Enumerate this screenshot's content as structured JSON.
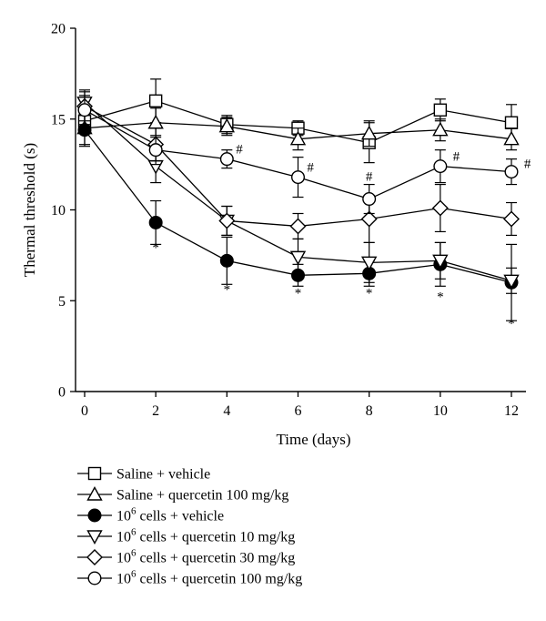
{
  "chart_data": {
    "type": "line",
    "xlabel": "Time (days)",
    "ylabel": "Thermal threshold (s)",
    "xlim": [
      0,
      12
    ],
    "ylim": [
      0,
      20
    ],
    "x_ticks": [
      "0",
      "2",
      "4",
      "6",
      "8",
      "10",
      "12"
    ],
    "y_ticks": [
      "0",
      "5",
      "10",
      "15",
      "20"
    ],
    "grid": false,
    "legend_position": "bottom",
    "series": [
      {
        "name": "Saline + vehicle",
        "marker": "square-open",
        "x": [
          0,
          2,
          4,
          6,
          8,
          10,
          12
        ],
        "y": [
          14.9,
          16.0,
          14.7,
          14.5,
          13.7,
          15.5,
          14.8
        ],
        "err": [
          0.6,
          1.2,
          0.5,
          0.4,
          1.1,
          0.6,
          1.0
        ]
      },
      {
        "name": "Saline + quercetin 100 mg/kg",
        "marker": "triangle-up-open",
        "x": [
          0,
          2,
          4,
          6,
          8,
          10,
          12
        ],
        "y": [
          14.5,
          14.8,
          14.6,
          13.9,
          14.2,
          14.4,
          13.9
        ],
        "err": [
          1.0,
          0.8,
          0.5,
          0.6,
          0.7,
          0.6,
          0.6
        ]
      },
      {
        "name": "cells + vehicle",
        "name_prefix": "10",
        "name_sup": "6",
        "marker": "circle-filled",
        "x": [
          0,
          2,
          4,
          6,
          8,
          10,
          12
        ],
        "y": [
          14.4,
          9.3,
          7.2,
          6.4,
          6.5,
          7.0,
          6.0
        ],
        "err": [
          0.8,
          1.2,
          1.3,
          0.6,
          0.7,
          1.2,
          2.1
        ]
      },
      {
        "name": "cells + quercetin 10 mg/kg",
        "name_prefix": "10",
        "name_sup": "6",
        "marker": "triangle-down-open",
        "x": [
          0,
          2,
          4,
          6,
          8,
          10,
          12
        ],
        "y": [
          15.9,
          12.4,
          9.4,
          7.4,
          7.1,
          7.2,
          6.1
        ],
        "err": [
          0.7,
          0.9,
          0.8,
          1.0,
          1.1,
          1.0,
          0.7
        ]
      },
      {
        "name": "cells + quercetin 30 mg/kg",
        "name_prefix": "10",
        "name_sup": "6",
        "marker": "diamond-open",
        "x": [
          0,
          2,
          4,
          6,
          8,
          10,
          12
        ],
        "y": [
          15.7,
          13.6,
          9.4,
          9.1,
          9.5,
          10.1,
          9.5
        ],
        "err": [
          0.8,
          0.9,
          0.8,
          0.7,
          1.3,
          1.3,
          0.9
        ]
      },
      {
        "name": "cells + quercetin 100 mg/kg",
        "name_prefix": "10",
        "name_sup": "6",
        "marker": "circle-open",
        "x": [
          0,
          2,
          4,
          6,
          8,
          10,
          12
        ],
        "y": [
          15.5,
          13.3,
          12.8,
          11.8,
          10.6,
          12.4,
          12.1
        ],
        "err": [
          0.8,
          0.8,
          0.5,
          1.1,
          0.8,
          0.9,
          0.7
        ]
      }
    ],
    "annotations": [
      {
        "text": "*",
        "x": 2,
        "y": 7.7
      },
      {
        "text": "*",
        "x": 4,
        "y": 5.4
      },
      {
        "text": "*",
        "x": 6,
        "y": 5.2
      },
      {
        "text": "*",
        "x": 8,
        "y": 5.2
      },
      {
        "text": "*",
        "x": 10,
        "y": 5.0
      },
      {
        "text": "*",
        "x": 12,
        "y": 3.5
      },
      {
        "text": "#",
        "x": 4.35,
        "y": 13.1
      },
      {
        "text": "#",
        "x": 6.35,
        "y": 12.1
      },
      {
        "text": "#",
        "x": 8.0,
        "y": 11.6
      },
      {
        "text": "#",
        "x": 10.45,
        "y": 12.7
      },
      {
        "text": "#",
        "x": 12.45,
        "y": 12.3
      }
    ]
  }
}
